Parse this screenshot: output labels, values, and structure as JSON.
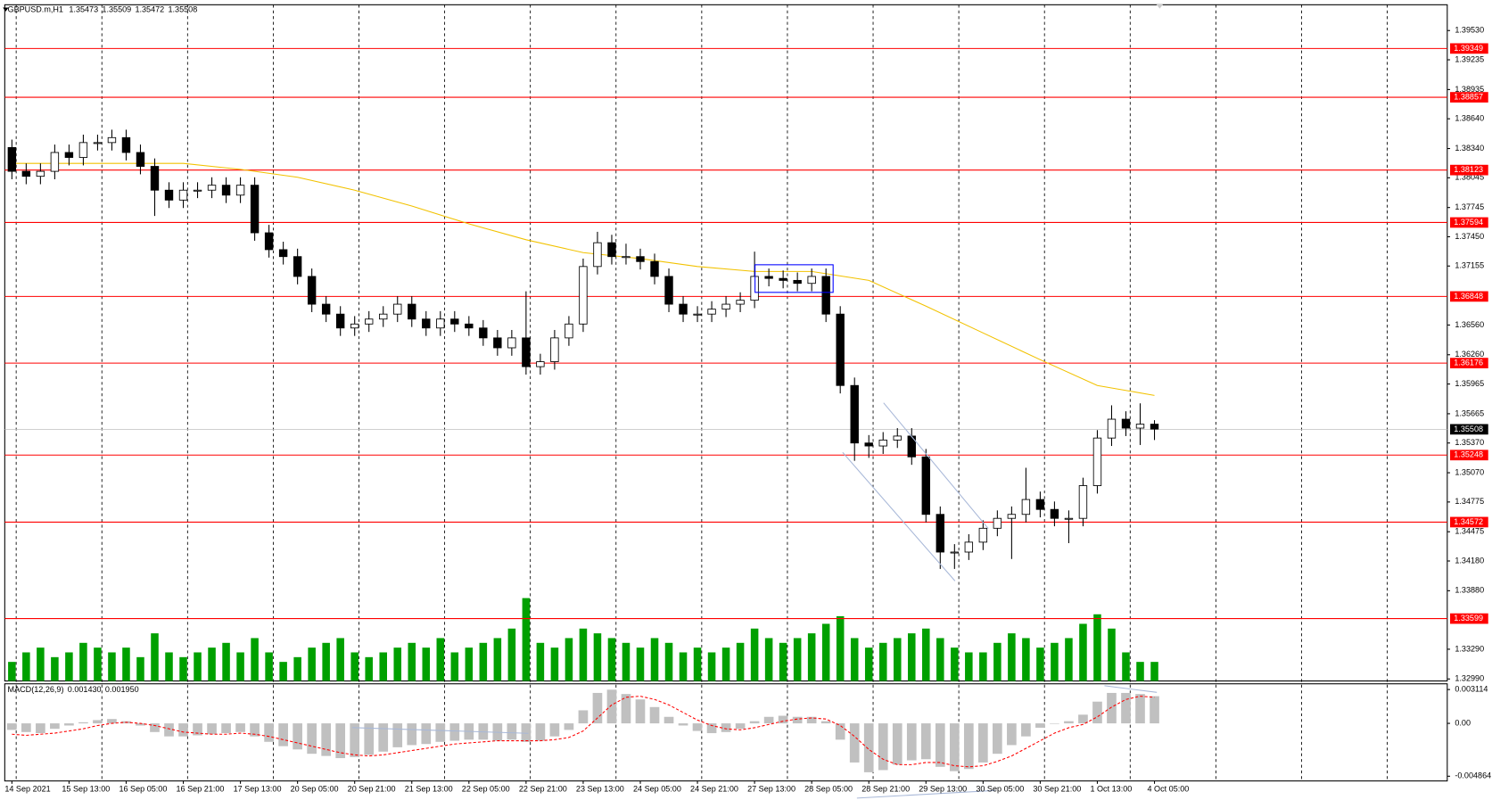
{
  "chart_data": {
    "type": "candlestick",
    "title": "GBPUSD.m,H1",
    "header_values": [
      1.35473,
      1.35509,
      1.35472,
      1.35508
    ],
    "categories": [
      "14 Sep 2021",
      null,
      null,
      null,
      "15 Sep 13:00",
      null,
      null,
      null,
      "16 Sep 05:00",
      null,
      null,
      null,
      "16 Sep 21:00",
      null,
      null,
      null,
      "17 Sep 13:00",
      null,
      null,
      null,
      "20 Sep 05:00",
      null,
      null,
      null,
      "20 Sep 21:00",
      null,
      null,
      null,
      "21 Sep 13:00",
      null,
      null,
      null,
      "22 Sep 05:00",
      null,
      null,
      null,
      "22 Sep 21:00",
      null,
      null,
      null,
      "23 Sep 13:00",
      null,
      null,
      null,
      "24 Sep 05:00",
      null,
      null,
      null,
      "24 Sep 21:00",
      null,
      null,
      null,
      "27 Sep 13:00",
      null,
      null,
      null,
      "28 Sep 05:00",
      null,
      null,
      null,
      "28 Sep 21:00",
      null,
      null,
      null,
      "29 Sep 13:00",
      null,
      null,
      null,
      "30 Sep 05:00",
      null,
      null,
      null,
      "30 Sep 21:00",
      null,
      null,
      null,
      "1 Oct 13:00",
      null,
      null,
      null,
      "4 Oct 05:00"
    ],
    "open": [
      1.3835,
      1.3811,
      1.3806,
      1.3811,
      1.383,
      1.3825,
      1.384,
      1.384,
      1.3845,
      1.383,
      1.3816,
      1.3792,
      1.3782,
      1.3792,
      1.3792,
      1.3797,
      1.3787,
      1.3797,
      1.3749,
      1.3732,
      1.3725,
      1.3705,
      1.3677,
      1.3667,
      1.3653,
      1.3657,
      1.3662,
      1.3667,
      1.3677,
      1.3662,
      1.3653,
      1.3662,
      1.3657,
      1.3653,
      1.3643,
      1.3633,
      1.3643,
      1.3614,
      1.3619,
      1.3643,
      1.3657,
      1.3715,
      1.3739,
      1.3725,
      1.3725,
      1.372,
      1.3705,
      1.3677,
      1.3667,
      1.3667,
      1.3672,
      1.3677,
      1.3681,
      1.3705,
      1.3703,
      1.3701,
      1.3698,
      1.3705,
      1.3667,
      1.3595,
      1.3537,
      1.3534,
      1.354,
      1.3544,
      1.3523,
      1.3465,
      1.3427,
      1.3427,
      1.3437,
      1.3451,
      1.3461,
      1.3465,
      1.348,
      1.347,
      1.3461,
      1.3461,
      1.3494,
      1.3542,
      1.3561,
      1.3552,
      1.3556
    ],
    "high": [
      1.3843,
      1.3819,
      1.3819,
      1.3838,
      1.3838,
      1.3848,
      1.3848,
      1.3853,
      1.3853,
      1.3838,
      1.3824,
      1.38,
      1.38,
      1.38,
      1.3805,
      1.3805,
      1.3805,
      1.3805,
      1.3757,
      1.374,
      1.3733,
      1.3713,
      1.3685,
      1.3675,
      1.3665,
      1.367,
      1.3675,
      1.3685,
      1.3685,
      1.367,
      1.367,
      1.367,
      1.3665,
      1.3661,
      1.3651,
      1.3651,
      1.369,
      1.3627,
      1.3651,
      1.3665,
      1.3723,
      1.375,
      1.3747,
      1.3738,
      1.3733,
      1.3728,
      1.3713,
      1.3685,
      1.3675,
      1.368,
      1.3685,
      1.3689,
      1.373,
      1.3713,
      1.3711,
      1.3709,
      1.3713,
      1.3713,
      1.3675,
      1.3603,
      1.3545,
      1.3548,
      1.3552,
      1.3552,
      1.3531,
      1.3473,
      1.3435,
      1.3445,
      1.3459,
      1.3469,
      1.3473,
      1.3512,
      1.3488,
      1.3478,
      1.3469,
      1.3502,
      1.355,
      1.3575,
      1.3569,
      1.3577,
      1.356
    ],
    "low": [
      1.3803,
      1.3798,
      1.3798,
      1.3803,
      1.3817,
      1.3817,
      1.3832,
      1.3832,
      1.3822,
      1.3808,
      1.3766,
      1.3774,
      1.3774,
      1.3784,
      1.3784,
      1.3779,
      1.3779,
      1.3741,
      1.3724,
      1.3717,
      1.3697,
      1.3669,
      1.3659,
      1.3645,
      1.3645,
      1.3649,
      1.3654,
      1.3659,
      1.3654,
      1.3645,
      1.3645,
      1.3649,
      1.3645,
      1.3635,
      1.3625,
      1.3625,
      1.3606,
      1.3606,
      1.3611,
      1.3635,
      1.3649,
      1.3707,
      1.3717,
      1.3717,
      1.3712,
      1.3697,
      1.3669,
      1.3659,
      1.3659,
      1.3659,
      1.3664,
      1.3669,
      1.3673,
      1.3695,
      1.3693,
      1.369,
      1.369,
      1.3659,
      1.3587,
      1.3519,
      1.3522,
      1.3526,
      1.3532,
      1.3515,
      1.3457,
      1.341,
      1.341,
      1.3419,
      1.3429,
      1.3443,
      1.342,
      1.3457,
      1.3462,
      1.3453,
      1.3436,
      1.3453,
      1.3486,
      1.3534,
      1.3544,
      1.3535,
      1.354
    ],
    "close": [
      1.3811,
      1.3806,
      1.3811,
      1.383,
      1.3825,
      1.384,
      1.384,
      1.3845,
      1.383,
      1.3816,
      1.3792,
      1.3782,
      1.3792,
      1.3792,
      1.3797,
      1.3787,
      1.3797,
      1.3749,
      1.3732,
      1.3725,
      1.3705,
      1.3677,
      1.3667,
      1.3653,
      1.3657,
      1.3662,
      1.3667,
      1.3677,
      1.3662,
      1.3653,
      1.3662,
      1.3657,
      1.3653,
      1.3643,
      1.3633,
      1.3643,
      1.3614,
      1.3619,
      1.3643,
      1.3657,
      1.3715,
      1.3739,
      1.3725,
      1.3725,
      1.372,
      1.3705,
      1.3677,
      1.3667,
      1.3667,
      1.3672,
      1.3677,
      1.3681,
      1.3705,
      1.3703,
      1.3701,
      1.3698,
      1.3705,
      1.3667,
      1.3595,
      1.3537,
      1.3534,
      1.354,
      1.3544,
      1.3523,
      1.3465,
      1.3427,
      1.3427,
      1.3437,
      1.3451,
      1.3461,
      1.3465,
      1.348,
      1.347,
      1.3461,
      1.3461,
      1.3494,
      1.3542,
      1.3561,
      1.3552,
      1.3556,
      1.3551
    ],
    "ylim": [
      1.3297,
      1.3979
    ],
    "yticks": [
      {
        "value": 1.3953,
        "label": "1.39530"
      },
      {
        "value": 1.39235,
        "label": "1.39235"
      },
      {
        "value": 1.38935,
        "label": "1.38935"
      },
      {
        "value": 1.3864,
        "label": "1.38640"
      },
      {
        "value": 1.3834,
        "label": "1.38340"
      },
      {
        "value": 1.38045,
        "label": "1.38045"
      },
      {
        "value": 1.37745,
        "label": "1.37745"
      },
      {
        "value": 1.3745,
        "label": "1.37450"
      },
      {
        "value": 1.37155,
        "label": "1.37155"
      },
      {
        "value": 1.3656,
        "label": "1.36560"
      },
      {
        "value": 1.3626,
        "label": "1.36260"
      },
      {
        "value": 1.35965,
        "label": "1.35965"
      },
      {
        "value": 1.35665,
        "label": "1.35665"
      },
      {
        "value": 1.3537,
        "label": "1.35370"
      },
      {
        "value": 1.3507,
        "label": "1.35070"
      },
      {
        "value": 1.34775,
        "label": "1.34775"
      },
      {
        "value": 1.34475,
        "label": "1.34475"
      },
      {
        "value": 1.3418,
        "label": "1.34180"
      },
      {
        "value": 1.3388,
        "label": "1.33880"
      },
      {
        "value": 1.3329,
        "label": "1.33290"
      },
      {
        "value": 1.3299,
        "label": "1.32990"
      }
    ],
    "levels": [
      1.39349,
      1.38857,
      1.38123,
      1.37594,
      1.36848,
      1.36176,
      1.35248,
      1.34572,
      1.33599
    ],
    "level_color": "#ff0000",
    "current_price": 1.35508,
    "bull_color": "#ffffff",
    "bear_color": "#000000",
    "ma": {
      "color": "#f2c200",
      "x": [
        0,
        4,
        8,
        12,
        16,
        20,
        24,
        28,
        32,
        36,
        40,
        44,
        48,
        52,
        56,
        60,
        64,
        68,
        72,
        76,
        80
      ],
      "values": [
        1.3819,
        1.3819,
        1.3819,
        1.3819,
        1.3813,
        1.3805,
        1.3792,
        1.3776,
        1.3758,
        1.3742,
        1.3729,
        1.3723,
        1.3715,
        1.371,
        1.371,
        1.3701,
        1.3675,
        1.3648,
        1.3621,
        1.3595,
        1.3585
      ]
    },
    "volume": {
      "color": "#00a000",
      "values": [
        20,
        30,
        35,
        25,
        30,
        40,
        35,
        30,
        35,
        25,
        50,
        30,
        25,
        30,
        35,
        40,
        30,
        45,
        30,
        20,
        25,
        35,
        40,
        45,
        30,
        25,
        30,
        35,
        40,
        35,
        45,
        30,
        35,
        40,
        45,
        55,
        87,
        40,
        35,
        45,
        55,
        50,
        45,
        40,
        35,
        45,
        40,
        30,
        35,
        30,
        35,
        40,
        55,
        45,
        40,
        45,
        50,
        60,
        68,
        45,
        35,
        40,
        45,
        50,
        55,
        45,
        35,
        30,
        30,
        40,
        50,
        45,
        35,
        40,
        45,
        60,
        70,
        55,
        30,
        20,
        20
      ]
    },
    "macd": {
      "title": "MACD(12,26,9)",
      "values": [
        0.00143,
        0.00195
      ],
      "value_labels": [
        "0.001430",
        "0.001950"
      ],
      "ylim": [
        -0.0053,
        0.00364
      ],
      "yticks": [
        0.003114,
        {
          "value": 0,
          "label": "0.00"
        },
        -0.004864
      ],
      "hist_color": "#c0c0c0",
      "signal_color": "#ff0000",
      "histogram": [
        -0.0006,
        -0.0008,
        -0.0009,
        -0.0005,
        -0.0002,
        0.0001,
        0.0003,
        0.0004,
        0.0002,
        -0.0002,
        -0.0008,
        -0.0012,
        -0.0012,
        -0.0011,
        -0.001,
        -0.0009,
        -0.0008,
        -0.0012,
        -0.0017,
        -0.0021,
        -0.0024,
        -0.0028,
        -0.003,
        -0.0032,
        -0.0031,
        -0.0029,
        -0.0026,
        -0.0022,
        -0.002,
        -0.0019,
        -0.0017,
        -0.0016,
        -0.0015,
        -0.0015,
        -0.0016,
        -0.0015,
        -0.0017,
        -0.0016,
        -0.0012,
        -0.0006,
        0.0012,
        0.0028,
        0.0031,
        0.0027,
        0.0022,
        0.0015,
        0.0006,
        -0.0002,
        -0.0007,
        -0.0009,
        -0.0008,
        -0.0005,
        0.0002,
        0.0006,
        0.0007,
        0.0006,
        0.0006,
        0.0002,
        -0.0015,
        -0.0036,
        -0.0045,
        -0.0043,
        -0.0038,
        -0.0034,
        -0.0033,
        -0.004,
        -0.0044,
        -0.0042,
        -0.0036,
        -0.0028,
        -0.002,
        -0.0012,
        -0.0004,
        0,
        0.0002,
        0.0008,
        0.002,
        0.0028,
        0.0028,
        0.0027,
        0.0025
      ],
      "signal": [
        -0.001,
        -0.0011,
        -0.001,
        -0.0009,
        -0.0007,
        -0.0005,
        -0.0002,
        0,
        0.0001,
        0,
        -0.0002,
        -0.0005,
        -0.0008,
        -0.0009,
        -0.001,
        -0.001,
        -0.0009,
        -0.001,
        -0.0012,
        -0.0015,
        -0.0018,
        -0.0021,
        -0.0024,
        -0.0027,
        -0.0029,
        -0.003,
        -0.0029,
        -0.0027,
        -0.0025,
        -0.0023,
        -0.0021,
        -0.0019,
        -0.0018,
        -0.0017,
        -0.0016,
        -0.0016,
        -0.0016,
        -0.0016,
        -0.0015,
        -0.0013,
        -0.0007,
        0.0005,
        0.0017,
        0.0024,
        0.0025,
        0.0022,
        0.0017,
        0.001,
        0.0003,
        -0.0002,
        -0.0005,
        -0.0006,
        -0.0004,
        -0.0001,
        0.0002,
        0.0004,
        0.0005,
        0.0004,
        -0.0002,
        -0.0012,
        -0.0024,
        -0.0033,
        -0.0038,
        -0.0038,
        -0.0036,
        -0.0036,
        -0.0039,
        -0.004,
        -0.0039,
        -0.0035,
        -0.003,
        -0.0023,
        -0.0016,
        -0.0009,
        -0.0004,
        -0.0001,
        0.0006,
        0.0015,
        0.0022,
        0.0025,
        0.0024
      ]
    }
  }
}
